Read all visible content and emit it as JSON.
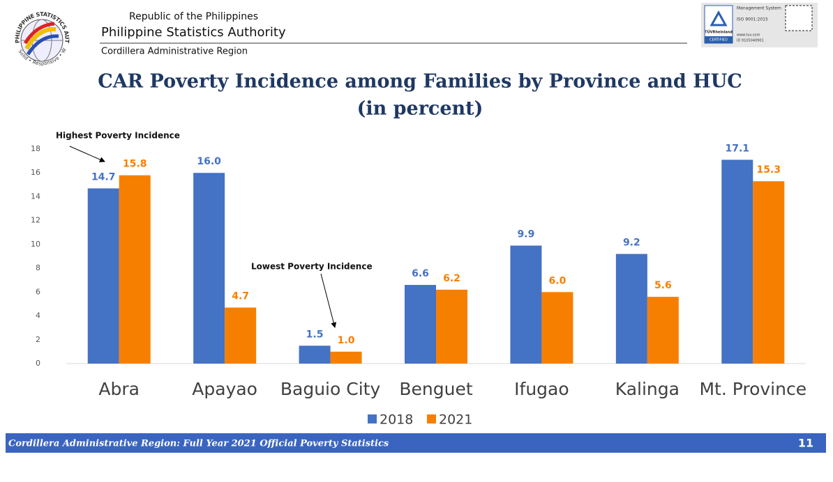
{
  "header": {
    "logo_text": "PHILIPPINE STATISTICS AUTHORITY",
    "logo_motto": "Solid • Responsive • World-class",
    "line1": "Republic of the Philippines",
    "line2": "Philippine Statistics Authority",
    "line3": "Cordillera Administrative Region",
    "badge": {
      "system": "Management System",
      "iso": "ISO 9001:2015",
      "brand": "TÜVRheinland",
      "certified": "CERTIFIED",
      "site": "www.tuv.com",
      "id": "ID 9105040901"
    }
  },
  "chart_data": {
    "type": "bar",
    "title": "CAR Poverty Incidence among Families by Province and HUC",
    "subtitle": "(in percent)",
    "categories": [
      "Abra",
      "Apayao",
      "Baguio City",
      "Benguet",
      "Ifugao",
      "Kalinga",
      "Mt. Province"
    ],
    "series": [
      {
        "name": "2018",
        "color": "#4472c4",
        "values": [
          14.7,
          16.0,
          1.5,
          6.6,
          9.9,
          9.2,
          17.1
        ],
        "value_labels": [
          "14.7",
          "16.0",
          "1.5",
          "6.6",
          "9.9",
          "9.2",
          "17.1"
        ]
      },
      {
        "name": "2021",
        "color": "#f77f00",
        "values": [
          15.8,
          4.7,
          1.0,
          6.2,
          6.0,
          5.6,
          15.3
        ],
        "value_labels": [
          "15.8",
          "4.7",
          "1.0",
          "6.2",
          "6.0",
          "5.6",
          "15.3"
        ]
      }
    ],
    "ylim": [
      0,
      18
    ],
    "yticks": [
      0,
      2,
      4,
      6,
      8,
      10,
      12,
      14,
      16,
      18
    ],
    "grid": false,
    "legend": "bottom",
    "annotations": [
      "Highest Poverty Incidence",
      "Lowest Poverty Incidence"
    ]
  },
  "footer": {
    "text": "Cordillera Administrative Region: Full Year 2021 Official Poverty Statistics",
    "page": "11"
  }
}
